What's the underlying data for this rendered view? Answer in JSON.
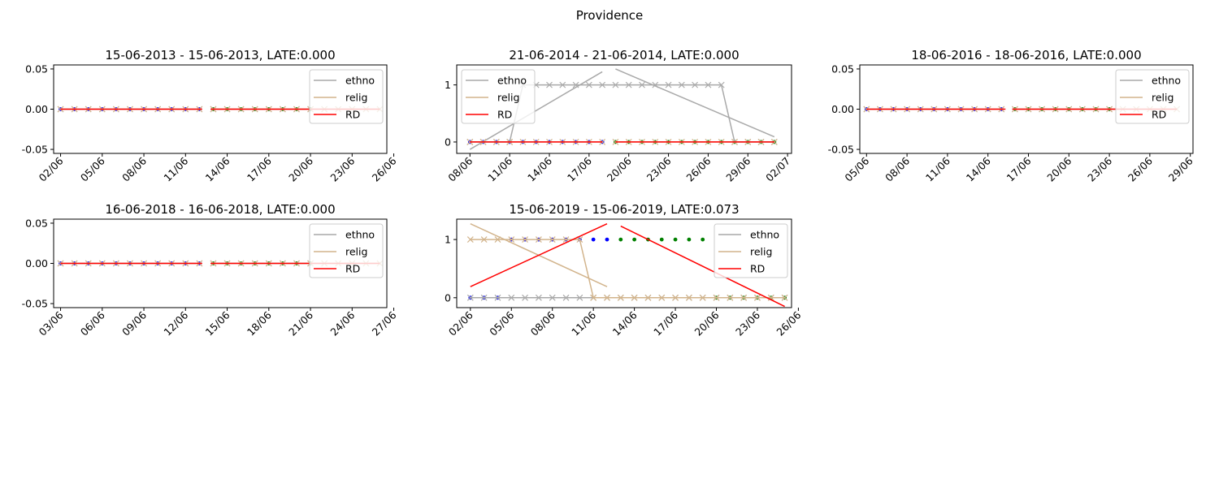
{
  "figure": {
    "title": "Providence"
  },
  "legend_labels": {
    "ethno": "ethno",
    "relig": "relig",
    "rd": "RD"
  },
  "colors": {
    "ethno": "#a9a9a9",
    "relig": "#d2b48c",
    "rd": "#ff0000",
    "left_points": "#0000ff",
    "right_points": "#008000"
  },
  "chart_data": [
    {
      "type": "line",
      "title": "15-06-2013 - 15-06-2013, LATE:0.000",
      "start_date": "2013-06-02",
      "cutoff": 10.5,
      "x_range": [
        -0.5,
        23.5
      ],
      "xticks": [
        0,
        3,
        6,
        9,
        12,
        15,
        18,
        21,
        24
      ],
      "xtick_labels": [
        "02/06",
        "05/06",
        "08/06",
        "11/06",
        "14/06",
        "17/06",
        "20/06",
        "23/06",
        "26/06"
      ],
      "ylim": [
        -0.055,
        0.055
      ],
      "yticks": [
        -0.05,
        0,
        0.05
      ],
      "ytick_labels": [
        "-0.05",
        "0.00",
        "0.05"
      ],
      "legend_position": "upper right",
      "ethno_x": [
        0,
        1,
        2,
        3,
        4,
        5,
        6,
        7,
        8,
        9,
        10,
        11,
        12,
        13,
        14,
        15,
        16,
        17,
        18,
        19,
        20,
        21,
        22,
        23
      ],
      "ethno_y": [
        0,
        0,
        0,
        0,
        0,
        0,
        0,
        0,
        0,
        0,
        0,
        0,
        0,
        0,
        0,
        0,
        0,
        0,
        0,
        0,
        0,
        0,
        0,
        0
      ],
      "relig_x": [
        0,
        1,
        2,
        3,
        4,
        5,
        6,
        7,
        8,
        9,
        10,
        11,
        12,
        13,
        14,
        15,
        16,
        17,
        18,
        19,
        20,
        21,
        22,
        23
      ],
      "relig_y": [
        0,
        0,
        0,
        0,
        0,
        0,
        0,
        0,
        0,
        0,
        0,
        0,
        0,
        0,
        0,
        0,
        0,
        0,
        0,
        0,
        0,
        0,
        0,
        0
      ],
      "left_points_x": [
        0,
        1,
        2,
        3,
        4,
        5,
        6,
        7,
        8,
        9,
        10
      ],
      "left_points_y": [
        0,
        0,
        0,
        0,
        0,
        0,
        0,
        0,
        0,
        0,
        0
      ],
      "right_points_x": [
        11,
        12,
        13,
        14,
        15,
        16,
        17,
        18
      ],
      "right_points_y": [
        0,
        0,
        0,
        0,
        0,
        0,
        0,
        0
      ],
      "rd_left": [
        [
          0,
          0
        ],
        [
          10.2,
          0
        ]
      ],
      "rd_right": [
        [
          10.8,
          0
        ],
        [
          23,
          0
        ]
      ]
    },
    {
      "type": "line",
      "title": "21-06-2014 - 21-06-2014, LATE:0.000",
      "start_date": "2014-06-08",
      "cutoff": 10.5,
      "x_range": [
        -1,
        24.3
      ],
      "xticks": [
        0,
        3,
        6,
        9,
        12,
        15,
        18,
        21,
        24
      ],
      "xtick_labels": [
        "08/06",
        "11/06",
        "14/06",
        "17/06",
        "20/06",
        "23/06",
        "26/06",
        "29/06",
        "02/07"
      ],
      "ylim": [
        -0.2,
        1.35
      ],
      "yticks": [
        0,
        1
      ],
      "ytick_labels": [
        "0",
        "1"
      ],
      "legend_position": "upper left",
      "ethno_x": [
        0,
        1,
        2,
        3,
        4,
        5,
        6,
        7,
        8,
        9,
        10,
        11,
        12,
        13,
        14,
        15,
        16,
        17,
        18,
        19,
        20,
        21,
        22,
        23
      ],
      "ethno_y": [
        0,
        0,
        0,
        0,
        1,
        1,
        1,
        1,
        1,
        1,
        1,
        1,
        1,
        1,
        1,
        1,
        1,
        1,
        1,
        1,
        0,
        0,
        0,
        0
      ],
      "ethno_fit_left": [
        [
          0,
          -0.13
        ],
        [
          10,
          1.23
        ]
      ],
      "ethno_fit_right": [
        [
          11,
          1.28
        ],
        [
          23,
          0.09
        ]
      ],
      "relig_x": [
        0,
        1,
        2,
        3,
        4,
        5,
        6,
        7,
        8,
        9,
        10,
        11,
        12,
        13,
        14,
        15,
        16,
        17,
        18,
        19,
        20,
        21,
        22,
        23
      ],
      "relig_y": [
        0,
        0,
        0,
        0,
        0,
        0,
        0,
        0,
        0,
        0,
        0,
        0,
        0,
        0,
        0,
        0,
        0,
        0,
        0,
        0,
        0,
        0,
        0,
        0
      ],
      "left_points_x": [
        0,
        1,
        2,
        3,
        4,
        5,
        6,
        7,
        8,
        9,
        10
      ],
      "left_points_y": [
        0,
        0,
        0,
        0,
        0,
        0,
        0,
        0,
        0,
        0,
        0
      ],
      "right_points_x": [
        11,
        12,
        13,
        14,
        15,
        16,
        17,
        18,
        19,
        20,
        21,
        22,
        23
      ],
      "right_points_y": [
        0,
        0,
        0,
        0,
        0,
        0,
        0,
        0,
        0,
        0,
        0,
        0,
        0
      ],
      "rd_left": [
        [
          0,
          0
        ],
        [
          10,
          0
        ]
      ],
      "rd_right": [
        [
          11,
          0
        ],
        [
          23,
          0
        ]
      ]
    },
    {
      "type": "line",
      "title": "18-06-2016 - 18-06-2016, LATE:0.000",
      "start_date": "2016-06-05",
      "cutoff": 10.5,
      "x_range": [
        -0.5,
        24.2
      ],
      "xticks": [
        0,
        3,
        6,
        9,
        12,
        15,
        18,
        21,
        24
      ],
      "xtick_labels": [
        "05/06",
        "08/06",
        "11/06",
        "14/06",
        "17/06",
        "20/06",
        "23/06",
        "26/06",
        "29/06"
      ],
      "ylim": [
        -0.055,
        0.055
      ],
      "yticks": [
        -0.05,
        0,
        0.05
      ],
      "ytick_labels": [
        "-0.05",
        "0.00",
        "0.05"
      ],
      "legend_position": "upper right",
      "ethno_x": [
        0,
        1,
        2,
        3,
        4,
        5,
        6,
        7,
        8,
        9,
        10,
        11,
        12,
        13,
        14,
        15,
        16,
        17,
        18,
        19,
        20,
        21,
        22,
        23
      ],
      "ethno_y": [
        0,
        0,
        0,
        0,
        0,
        0,
        0,
        0,
        0,
        0,
        0,
        0,
        0,
        0,
        0,
        0,
        0,
        0,
        0,
        0,
        0,
        0,
        0,
        0
      ],
      "relig_x": [
        0,
        1,
        2,
        3,
        4,
        5,
        6,
        7,
        8,
        9,
        10,
        11,
        12,
        13,
        14,
        15,
        16,
        17,
        18,
        19,
        20,
        21,
        22,
        23
      ],
      "relig_y": [
        0,
        0,
        0,
        0,
        0,
        0,
        0,
        0,
        0,
        0,
        0,
        0,
        0,
        0,
        0,
        0,
        0,
        0,
        0,
        0,
        0,
        0,
        0,
        0
      ],
      "left_points_x": [
        0,
        1,
        2,
        3,
        4,
        5,
        6,
        7,
        8,
        9,
        10
      ],
      "left_points_y": [
        0,
        0,
        0,
        0,
        0,
        0,
        0,
        0,
        0,
        0,
        0
      ],
      "right_points_x": [
        11,
        12,
        13,
        14,
        15,
        16,
        17,
        18
      ],
      "right_points_y": [
        0,
        0,
        0,
        0,
        0,
        0,
        0,
        0
      ],
      "rd_left": [
        [
          0,
          0
        ],
        [
          10.3,
          0
        ]
      ],
      "rd_right": [
        [
          10.8,
          0
        ],
        [
          23,
          0
        ]
      ]
    },
    {
      "type": "line",
      "title": "16-06-2018 - 16-06-2018, LATE:0.000",
      "start_date": "2018-06-03",
      "cutoff": 10.5,
      "x_range": [
        -0.5,
        23.5
      ],
      "xticks": [
        0,
        3,
        6,
        9,
        12,
        15,
        18,
        21,
        24
      ],
      "xtick_labels": [
        "03/06",
        "06/06",
        "09/06",
        "12/06",
        "15/06",
        "18/06",
        "21/06",
        "24/06",
        "27/06"
      ],
      "ylim": [
        -0.055,
        0.055
      ],
      "yticks": [
        -0.05,
        0,
        0.05
      ],
      "ytick_labels": [
        "-0.05",
        "0.00",
        "0.05"
      ],
      "legend_position": "upper right",
      "ethno_x": [
        0,
        1,
        2,
        3,
        4,
        5,
        6,
        7,
        8,
        9,
        10,
        11,
        12,
        13,
        14,
        15,
        16,
        17,
        18,
        19,
        20,
        21,
        22,
        23
      ],
      "ethno_y": [
        0,
        0,
        0,
        0,
        0,
        0,
        0,
        0,
        0,
        0,
        0,
        0,
        0,
        0,
        0,
        0,
        0,
        0,
        0,
        0,
        0,
        0,
        0,
        0
      ],
      "relig_x": [
        0,
        1,
        2,
        3,
        4,
        5,
        6,
        7,
        8,
        9,
        10,
        11,
        12,
        13,
        14,
        15,
        16,
        17,
        18,
        19,
        20,
        21,
        22,
        23
      ],
      "relig_y": [
        0,
        0,
        0,
        0,
        0,
        0,
        0,
        0,
        0,
        0,
        0,
        0,
        0,
        0,
        0,
        0,
        0,
        0,
        0,
        0,
        0,
        0,
        0,
        0
      ],
      "left_points_x": [
        0,
        1,
        2,
        3,
        4,
        5,
        6,
        7,
        8,
        9,
        10
      ],
      "left_points_y": [
        0,
        0,
        0,
        0,
        0,
        0,
        0,
        0,
        0,
        0,
        0
      ],
      "right_points_x": [
        11,
        12,
        13,
        14,
        15,
        16,
        17,
        18
      ],
      "right_points_y": [
        0,
        0,
        0,
        0,
        0,
        0,
        0,
        0
      ],
      "rd_left": [
        [
          0,
          0
        ],
        [
          10.2,
          0
        ]
      ],
      "rd_right": [
        [
          10.8,
          0
        ],
        [
          23,
          0
        ]
      ]
    },
    {
      "type": "line",
      "title": "15-06-2019 - 15-06-2019, LATE:0.073",
      "start_date": "2019-06-02",
      "cutoff": 10.5,
      "x_range": [
        -1,
        23.5
      ],
      "xticks": [
        0,
        3,
        6,
        9,
        12,
        15,
        18,
        21,
        24
      ],
      "xtick_labels": [
        "02/06",
        "05/06",
        "08/06",
        "11/06",
        "14/06",
        "17/06",
        "20/06",
        "23/06",
        "26/06"
      ],
      "ylim": [
        -0.17,
        1.35
      ],
      "yticks": [
        0,
        1
      ],
      "ytick_labels": [
        "0",
        "1"
      ],
      "legend_position": "upper right",
      "ethno_x": [
        0,
        1,
        2,
        3,
        4,
        5,
        6,
        7,
        8,
        9,
        10,
        11,
        12,
        13,
        14,
        15,
        16,
        17,
        18,
        19,
        20,
        21,
        22,
        23
      ],
      "ethno_y": [
        0,
        0,
        0,
        0,
        0,
        0,
        0,
        0,
        0,
        0,
        0,
        0,
        0,
        0,
        0,
        0,
        0,
        0,
        0,
        0,
        0,
        0,
        0,
        0
      ],
      "relig_x": [
        0,
        1,
        2,
        3,
        4,
        5,
        6,
        7,
        8,
        9,
        10,
        11,
        12,
        13,
        14,
        15,
        16,
        17,
        18,
        19,
        20,
        21,
        22,
        23
      ],
      "relig_y": [
        1,
        1,
        1,
        1,
        1,
        1,
        1,
        1,
        1,
        0,
        0,
        0,
        0,
        0,
        0,
        0,
        0,
        0,
        0,
        0,
        0,
        0,
        0,
        0
      ],
      "relig_fit_left": [
        [
          0,
          1.27
        ],
        [
          10,
          0.19
        ]
      ],
      "relig_fit_right": [
        [
          11,
          0
        ],
        [
          23,
          0
        ]
      ],
      "left_points_x": [
        0,
        1,
        2,
        3,
        4,
        5,
        6,
        7,
        8,
        9,
        10
      ],
      "left_points_y": [
        0,
        0,
        0,
        1,
        1,
        1,
        1,
        1,
        1,
        1,
        1
      ],
      "right_points_x": [
        11,
        12,
        13,
        14,
        15,
        16,
        17,
        18,
        19,
        20,
        21,
        22,
        23
      ],
      "right_points_y": [
        1,
        1,
        1,
        1,
        1,
        1,
        1,
        0,
        0,
        0,
        0,
        0,
        0
      ],
      "rd_left": [
        [
          0,
          0.19
        ],
        [
          10,
          1.27
        ]
      ],
      "rd_right": [
        [
          11,
          1.23
        ],
        [
          23,
          -0.15
        ]
      ]
    }
  ]
}
